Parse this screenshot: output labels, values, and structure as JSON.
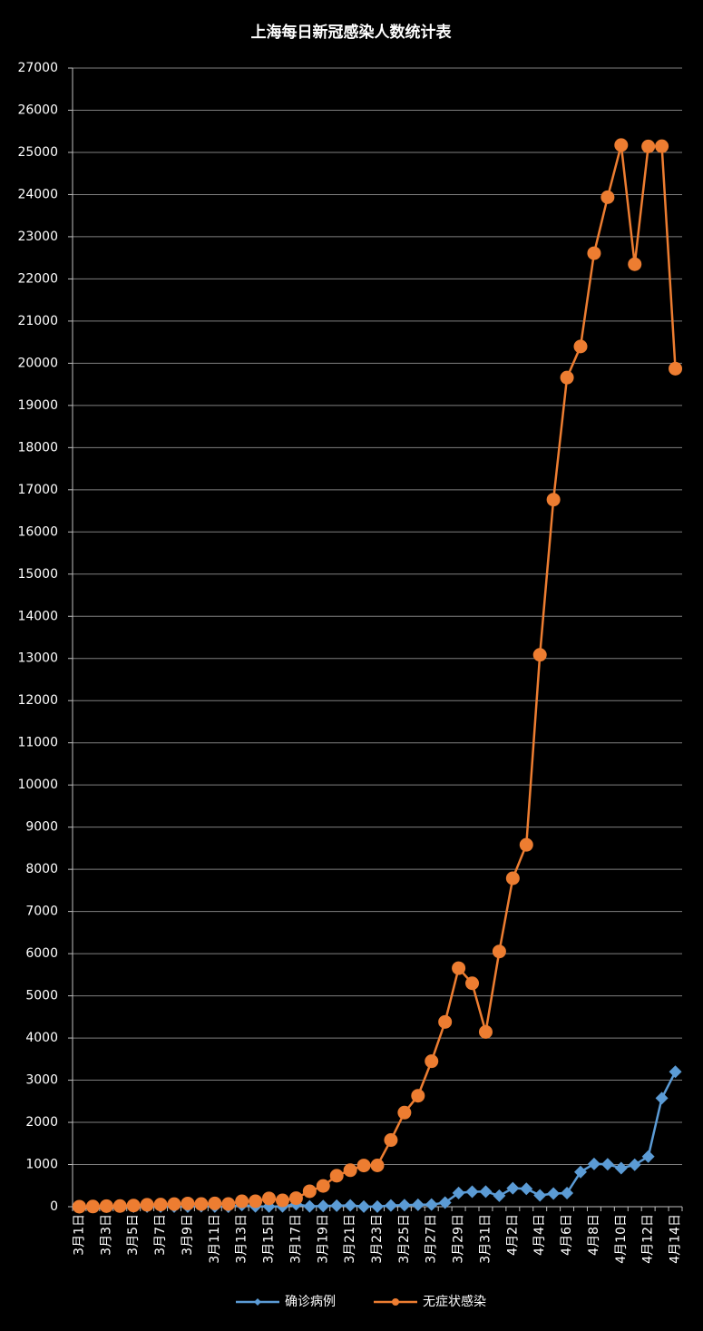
{
  "chart_data": {
    "type": "line",
    "title": "上海每日新冠感染人数统计表",
    "categories": [
      "3月1日",
      null,
      "3月3日",
      null,
      "3月5日",
      null,
      "3月7日",
      null,
      "3月9日",
      null,
      "3月11日",
      null,
      "3月13日",
      null,
      "3月15日",
      null,
      "3月17日",
      null,
      "3月19日",
      null,
      "3月21日",
      null,
      "3月23日",
      null,
      "3月25日",
      null,
      "3月27日",
      null,
      "3月29日",
      null,
      "3月31日",
      null,
      "4月2日",
      null,
      "4月4日",
      null,
      "4月6日",
      null,
      "4月8日",
      null,
      "4月10日",
      null,
      "4月12日",
      null,
      "4月14日"
    ],
    "series": [
      {
        "name": "确诊病例",
        "color": "#5b9bd5",
        "marker": "diamond",
        "values": [
          1,
          3,
          2,
          3,
          0,
          3,
          4,
          3,
          4,
          11,
          5,
          1,
          41,
          9,
          5,
          8,
          57,
          8,
          17,
          24,
          31,
          4,
          4,
          29,
          38,
          45,
          50,
          96,
          326,
          355,
          358,
          260,
          438,
          425,
          268,
          311,
          322,
          824,
          1015,
          1006,
          914,
          994,
          1189,
          2573,
          3200
        ]
      },
      {
        "name": "无症状感染",
        "color": "#ed7d31",
        "marker": "circle",
        "values": [
          1,
          5,
          14,
          16,
          28,
          45,
          51,
          62,
          76,
          64,
          78,
          64,
          128,
          130,
          197,
          150,
          203,
          366,
          492,
          734,
          865,
          977,
          979,
          1580,
          2231,
          2631,
          3450,
          4381,
          5656,
          5298,
          4144,
          6051,
          7788,
          8581,
          13086,
          16766,
          19660,
          20398,
          22609,
          23937,
          25173,
          22348,
          25141,
          25146,
          19872
        ]
      }
    ],
    "ylim": [
      0,
      27000
    ],
    "yticks": [
      0,
      1000,
      2000,
      3000,
      4000,
      5000,
      6000,
      7000,
      8000,
      9000,
      10000,
      11000,
      12000,
      13000,
      14000,
      15000,
      16000,
      17000,
      18000,
      19000,
      20000,
      21000,
      22000,
      23000,
      24000,
      25000,
      26000,
      27000
    ],
    "grid": true,
    "legend": "bottom"
  }
}
